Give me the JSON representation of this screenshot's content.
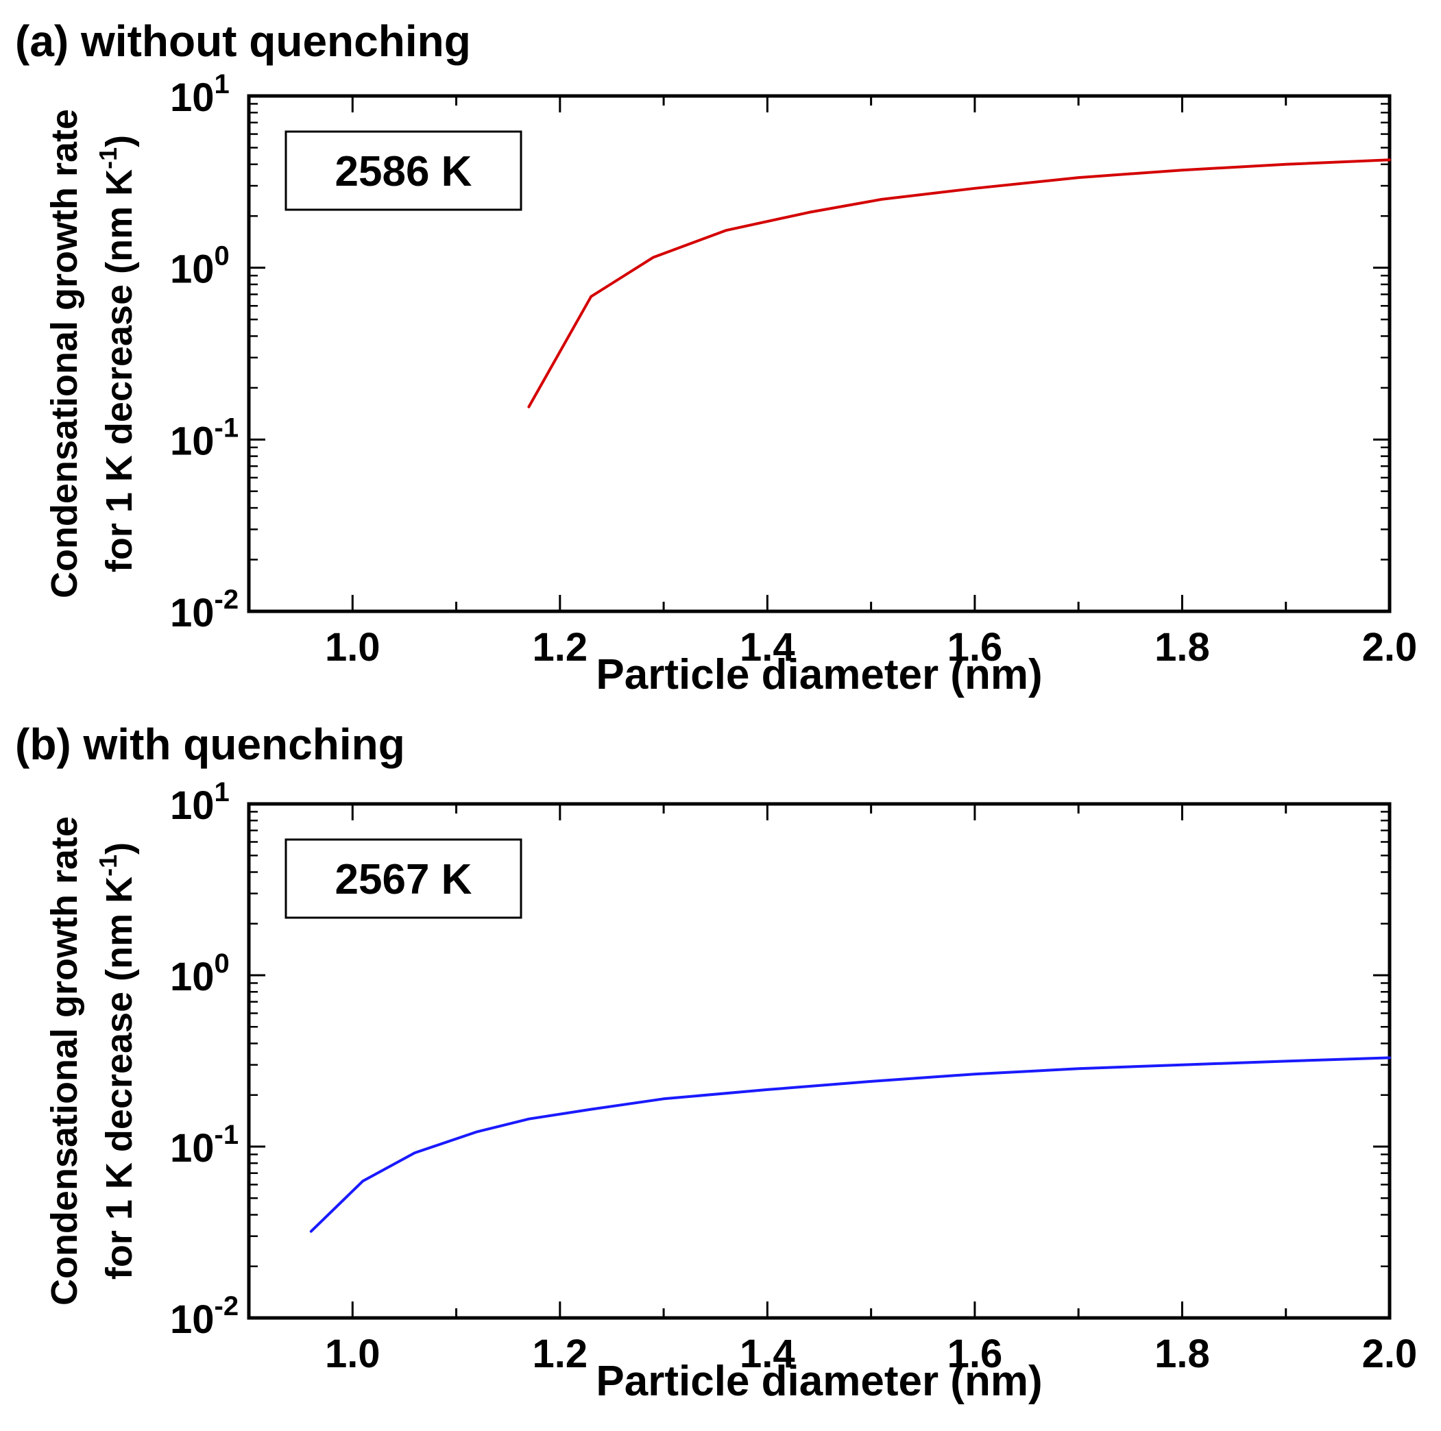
{
  "chart_data": [
    {
      "type": "line",
      "panel_label": "(a) without quenching",
      "annotation": "2586 K",
      "xlabel": "Particle diameter (nm)",
      "ylabel_line1": "Condensational growth rate",
      "ylabel_line2": "for 1 K decrease (nm K",
      "ylabel_unit_sup": "-1",
      "ylabel_close": ")",
      "xlim": [
        0.9,
        2.0
      ],
      "ylim": [
        0.01,
        10
      ],
      "yscale": "log",
      "x_ticks": [
        "1.0",
        "1.2",
        "1.4",
        "1.6",
        "1.8",
        "2.0"
      ],
      "y_ticks": [
        {
          "base": "10",
          "exp": "-2"
        },
        {
          "base": "10",
          "exp": "-1"
        },
        {
          "base": "10",
          "exp": "0"
        },
        {
          "base": "10",
          "exp": "1"
        }
      ],
      "series": [
        {
          "color": "#d40000",
          "x": [
            1.17,
            1.23,
            1.29,
            1.36,
            1.44,
            1.51,
            1.6,
            1.7,
            1.8,
            1.9,
            2.0
          ],
          "y": [
            0.155,
            0.68,
            1.15,
            1.65,
            2.1,
            2.5,
            2.9,
            3.35,
            3.7,
            4.0,
            4.25
          ]
        }
      ],
      "grid": false
    },
    {
      "type": "line",
      "panel_label": "(b) with quenching",
      "annotation": "2567 K",
      "xlabel": "Particle diameter (nm)",
      "ylabel_line1": "Condensational growth rate",
      "ylabel_line2": "for 1 K decrease (nm K",
      "ylabel_unit_sup": "-1",
      "ylabel_close": ")",
      "xlim": [
        0.9,
        2.0
      ],
      "ylim": [
        0.01,
        10
      ],
      "yscale": "log",
      "x_ticks": [
        "1.0",
        "1.2",
        "1.4",
        "1.6",
        "1.8",
        "2.0"
      ],
      "y_ticks": [
        {
          "base": "10",
          "exp": "-2"
        },
        {
          "base": "10",
          "exp": "-1"
        },
        {
          "base": "10",
          "exp": "0"
        },
        {
          "base": "10",
          "exp": "1"
        }
      ],
      "series": [
        {
          "color": "#1a1aff",
          "x": [
            0.96,
            1.01,
            1.06,
            1.12,
            1.17,
            1.23,
            1.3,
            1.4,
            1.5,
            1.6,
            1.7,
            1.8,
            1.9,
            2.0
          ],
          "y": [
            0.032,
            0.063,
            0.092,
            0.122,
            0.145,
            0.165,
            0.19,
            0.215,
            0.24,
            0.265,
            0.285,
            0.3,
            0.315,
            0.33
          ]
        }
      ],
      "grid": false
    }
  ]
}
